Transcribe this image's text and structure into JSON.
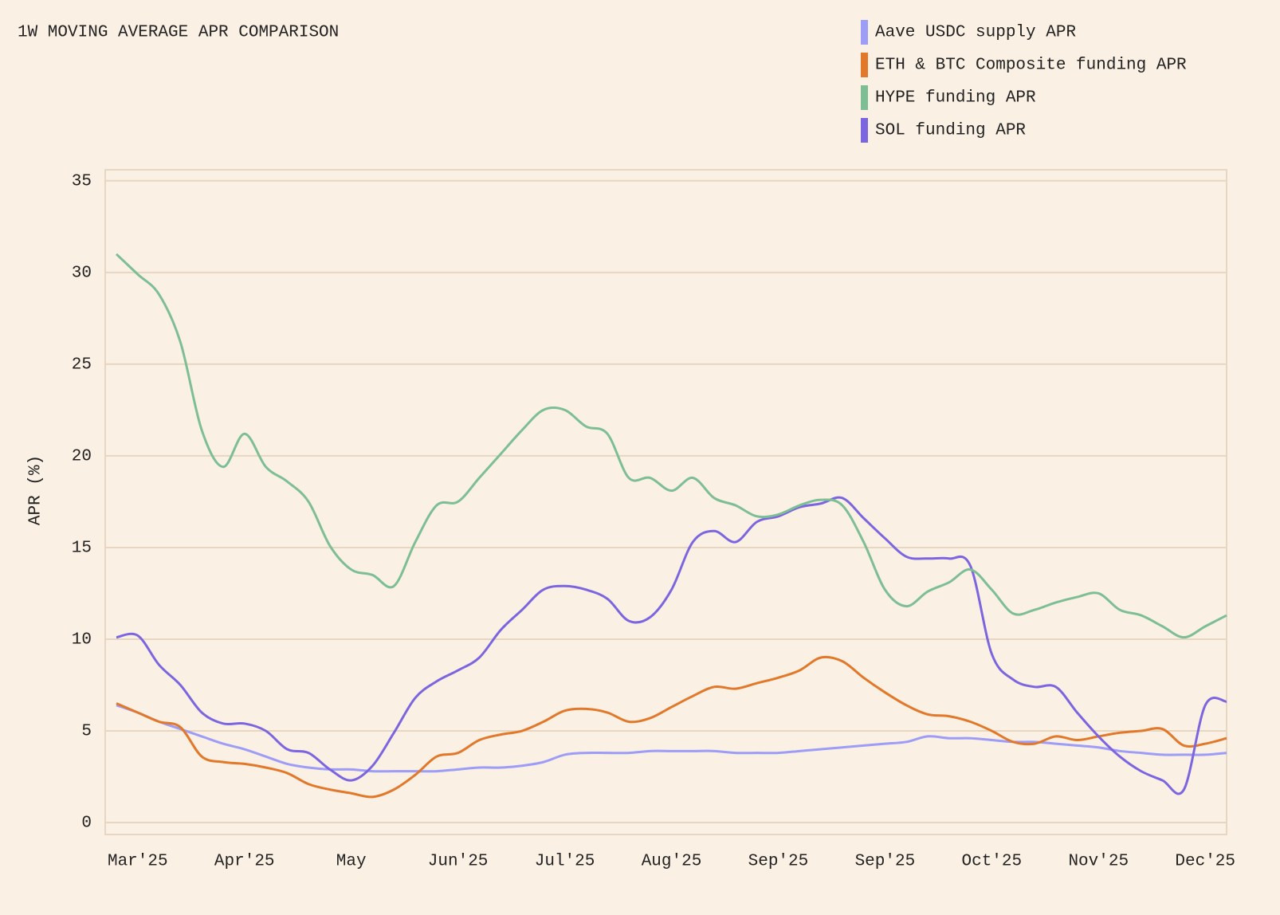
{
  "chart_data": {
    "type": "line",
    "title": "1W MOVING AVERAGE APR COMPARISON",
    "y_label": "APR (%)",
    "categories": [
      null,
      "Mar'25",
      null,
      null,
      null,
      null,
      "Apr'25",
      null,
      null,
      null,
      null,
      "May",
      null,
      null,
      null,
      null,
      "Jun'25",
      null,
      null,
      null,
      null,
      "Jul'25",
      null,
      null,
      null,
      null,
      "Aug'25",
      null,
      null,
      null,
      null,
      "Sep'25",
      null,
      null,
      null,
      null,
      "Sep'25",
      null,
      null,
      null,
      null,
      "Oct'25",
      null,
      null,
      null,
      null,
      "Nov'25",
      null,
      null,
      null,
      null,
      "Dec'25",
      null
    ],
    "series": [
      {
        "name": "Aave USDC supply APR",
        "color": "#9d9cf6",
        "values": [
          6.4,
          6.0,
          5.5,
          5.1,
          4.7,
          4.3,
          4.0,
          3.6,
          3.2,
          3.0,
          2.9,
          2.9,
          2.8,
          2.8,
          2.8,
          2.8,
          2.9,
          3.0,
          3.0,
          3.1,
          3.3,
          3.7,
          3.8,
          3.8,
          3.8,
          3.9,
          3.9,
          3.9,
          3.9,
          3.8,
          3.8,
          3.8,
          3.9,
          4.0,
          4.1,
          4.2,
          4.3,
          4.4,
          4.7,
          4.6,
          4.6,
          4.5,
          4.4,
          4.4,
          4.3,
          4.2,
          4.1,
          3.9,
          3.8,
          3.7,
          3.7,
          3.7,
          3.8
        ]
      },
      {
        "name": "ETH & BTC Composite funding APR",
        "color": "#e2782a",
        "values": [
          6.5,
          6.0,
          5.5,
          5.2,
          3.6,
          3.3,
          3.2,
          3.0,
          2.7,
          2.1,
          1.8,
          1.6,
          1.4,
          1.8,
          2.6,
          3.6,
          3.8,
          4.5,
          4.8,
          5.0,
          5.5,
          6.1,
          6.2,
          6.0,
          5.5,
          5.7,
          6.3,
          6.9,
          7.4,
          7.3,
          7.6,
          7.9,
          8.3,
          9.0,
          8.8,
          7.9,
          7.1,
          6.4,
          5.9,
          5.8,
          5.5,
          5.0,
          4.4,
          4.3,
          4.7,
          4.5,
          4.7,
          4.9,
          5.0,
          5.1,
          4.2,
          4.3,
          4.6
        ]
      },
      {
        "name": "HYPE funding APR",
        "color": "#7dbe95",
        "values": [
          31.0,
          29.9,
          28.8,
          26.2,
          21.4,
          19.4,
          21.2,
          19.4,
          18.6,
          17.5,
          15.1,
          13.8,
          13.5,
          12.9,
          15.3,
          17.3,
          17.5,
          18.8,
          20.1,
          21.4,
          22.5,
          22.5,
          21.6,
          21.2,
          18.8,
          18.8,
          18.1,
          18.8,
          17.7,
          17.3,
          16.7,
          16.8,
          17.3,
          17.6,
          17.3,
          15.3,
          12.7,
          11.8,
          12.6,
          13.1,
          13.8,
          12.7,
          11.4,
          11.6,
          12.0,
          12.3,
          12.5,
          11.6,
          11.3,
          10.7,
          10.1,
          10.7,
          11.3
        ]
      },
      {
        "name": "SOL funding APR",
        "color": "#7b66e0",
        "values": [
          10.1,
          10.2,
          8.6,
          7.5,
          6.0,
          5.4,
          5.4,
          5.0,
          4.0,
          3.8,
          2.9,
          2.3,
          3.1,
          4.9,
          6.8,
          7.7,
          8.3,
          9.0,
          10.5,
          11.6,
          12.7,
          12.9,
          12.7,
          12.2,
          11.0,
          11.2,
          12.7,
          15.3,
          15.9,
          15.3,
          16.4,
          16.7,
          17.2,
          17.4,
          17.7,
          16.6,
          15.5,
          14.5,
          14.4,
          14.4,
          14.0,
          9.2,
          7.8,
          7.4,
          7.4,
          6.0,
          4.7,
          3.6,
          2.8,
          2.3,
          1.8,
          6.4,
          6.6
        ]
      }
    ],
    "ylim": [
      -0.65,
      35.6
    ],
    "yticks": [
      0,
      5,
      10,
      15,
      20,
      25,
      30,
      35
    ],
    "grid": true
  }
}
